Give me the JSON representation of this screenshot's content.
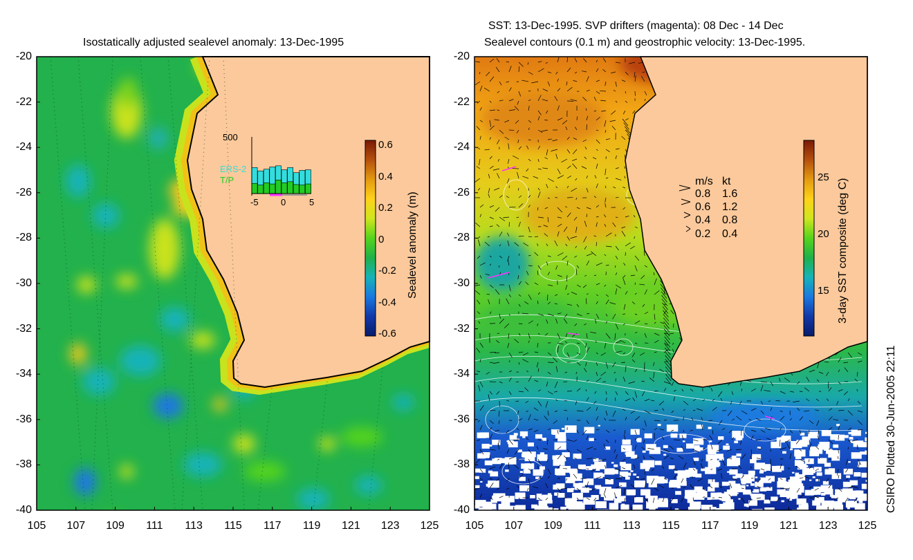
{
  "left_panel": {
    "title": "Isostatically adjusted sealevel anomaly: 13-Dec-1995",
    "y_ticks": [
      "-20",
      "-22",
      "-24",
      "-26",
      "-28",
      "-30",
      "-32",
      "-34",
      "-36",
      "-38",
      "-40"
    ],
    "x_ticks": [
      "105",
      "107",
      "109",
      "111",
      "113",
      "115",
      "117",
      "119",
      "121",
      "123",
      "125"
    ],
    "colorbar": {
      "label": "Sealevel anomaly (m)",
      "ticks": [
        "0.6",
        "0.4",
        "0.2",
        "0",
        "-0.2",
        "-0.4",
        "-0.6"
      ],
      "colors": [
        "#7a1a06",
        "#b5500e",
        "#e39a10",
        "#ffd21a",
        "#cfe61e",
        "#55d41c",
        "#1fb14a",
        "#16b3b8",
        "#1a78e0",
        "#1238a8",
        "#071c6a"
      ]
    },
    "inset": {
      "ymax_label": "500",
      "x_ticks": [
        "-5",
        "0",
        "5"
      ],
      "legend": [
        {
          "label": "ERS-2",
          "color": "#33dddd"
        },
        {
          "label": "T/P",
          "color": "#22cc22"
        }
      ],
      "bars_ers2": [
        230,
        200,
        215,
        235,
        245,
        210,
        230,
        185,
        205,
        210
      ],
      "bars_tp": [
        90,
        75,
        95,
        85,
        120,
        95,
        105,
        80,
        75,
        85
      ],
      "accent": "#ff33ff"
    }
  },
  "right_panel": {
    "title_line1": "SST: 13-Dec-1995. SVP drifters (magenta): 08 Dec - 14 Dec",
    "title_line2": "Sealevel contours (0.1 m) and geostrophic velocity: 13-Dec-1995.",
    "y_ticks": [
      "-20",
      "-22",
      "-24",
      "-26",
      "-28",
      "-30",
      "-32",
      "-34",
      "-36",
      "-38",
      "-40"
    ],
    "x_ticks": [
      "105",
      "107",
      "109",
      "111",
      "113",
      "115",
      "117",
      "119",
      "121",
      "123",
      "125"
    ],
    "colorbar": {
      "label": "3-day SST composite (deg C)",
      "ticks": [
        "25",
        "20",
        "15"
      ],
      "colors": [
        "#7a1a06",
        "#b5500e",
        "#e39a10",
        "#ffd21a",
        "#cfe61e",
        "#55d41c",
        "#1fb14a",
        "#16b3b8",
        "#1a78e0",
        "#1238a8",
        "#071c6a"
      ]
    },
    "velocity_legend": {
      "header_ms": "m/s",
      "header_kt": "kt",
      "rows": [
        {
          "ms": "0.8",
          "kt": "1.6"
        },
        {
          "ms": "0.6",
          "kt": "1.2"
        },
        {
          "ms": "0.4",
          "kt": "0.8"
        },
        {
          "ms": "0.2",
          "kt": "0.4"
        }
      ]
    }
  },
  "land_color": "#fbc99b",
  "credit": "CSIRO Plotted 30-Jun-2005 22:11"
}
